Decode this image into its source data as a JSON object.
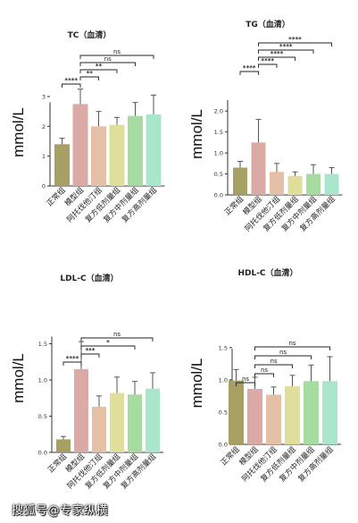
{
  "chart_data": [
    {
      "type": "bar",
      "title": "TC（血清）",
      "ylabel": "mmol/L",
      "categories": [
        "正常组",
        "模型组",
        "阿托伐他汀组",
        "复方低剂量组",
        "复方中剂量组",
        "复方高剂量组"
      ],
      "values": [
        1.4,
        2.75,
        2.0,
        2.05,
        2.35,
        2.4
      ],
      "errors": [
        0.2,
        0.5,
        0.5,
        0.25,
        0.45,
        0.65
      ],
      "ylim": [
        0,
        3.6
      ],
      "yticks": [
        "0",
        "1",
        "2",
        "3"
      ],
      "significance": [
        {
          "from": 0,
          "to": 1,
          "label": "****"
        },
        {
          "from": 1,
          "to": 2,
          "label": "**"
        },
        {
          "from": 1,
          "to": 3,
          "label": "**"
        },
        {
          "from": 1,
          "to": 4,
          "label": "ns"
        },
        {
          "from": 1,
          "to": 5,
          "label": "ns"
        }
      ]
    },
    {
      "type": "bar",
      "title": "TG（血清）",
      "ylabel": "mmol/L",
      "categories": [
        "正常组",
        "模型组",
        "阿托伐他汀组",
        "复方低剂量组",
        "复方中剂量组",
        "复方高剂量组"
      ],
      "values": [
        0.65,
        1.25,
        0.55,
        0.45,
        0.5,
        0.5
      ],
      "errors": [
        0.15,
        0.55,
        0.2,
        0.1,
        0.22,
        0.15
      ],
      "ylim": [
        0,
        2.9
      ],
      "yticks": [
        "0.0",
        "0.5",
        "1.0",
        "1.5",
        "2.0"
      ],
      "significance": [
        {
          "from": 0,
          "to": 1,
          "label": "****"
        },
        {
          "from": 1,
          "to": 2,
          "label": "****"
        },
        {
          "from": 1,
          "to": 3,
          "label": "****"
        },
        {
          "from": 1,
          "to": 4,
          "label": "****"
        },
        {
          "from": 1,
          "to": 5,
          "label": "****"
        }
      ]
    },
    {
      "type": "bar",
      "title": "LDL-C（血清）",
      "ylabel": "mmol/L",
      "categories": [
        "正常组",
        "模型组",
        "阿托伐他汀组",
        "复方低剂量组",
        "复方中剂量组",
        "复方高剂量组"
      ],
      "values": [
        0.18,
        1.15,
        0.63,
        0.82,
        0.8,
        0.88
      ],
      "errors": [
        0.04,
        0.38,
        0.15,
        0.22,
        0.18,
        0.22
      ],
      "ylim": [
        0,
        2.05
      ],
      "yticks": [
        "0.0",
        "0.5",
        "1.0",
        "1.5"
      ],
      "significance": [
        {
          "from": 0,
          "to": 1,
          "label": "****"
        },
        {
          "from": 1,
          "to": 2,
          "label": "***"
        },
        {
          "from": 1,
          "to": 4,
          "label": "*"
        },
        {
          "from": 1,
          "to": 5,
          "label": "ns"
        }
      ]
    },
    {
      "type": "bar",
      "title": "HDL-C（血清）",
      "ylabel": "mmol/L",
      "categories": [
        "正常组",
        "模型组",
        "阿托伐他汀组",
        "复方低剂量组",
        "复方中剂量组",
        "复方高剂量组"
      ],
      "values": [
        0.99,
        0.86,
        0.77,
        0.9,
        0.98,
        0.98
      ],
      "errors": [
        0.17,
        0.18,
        0.12,
        0.17,
        0.25,
        0.38
      ],
      "ylim": [
        0,
        1.9
      ],
      "yticks": [
        "0.0",
        "0.5",
        "1.0",
        "1.5"
      ],
      "significance": [
        {
          "from": 0,
          "to": 1,
          "label": "ns"
        },
        {
          "from": 1,
          "to": 2,
          "label": "ns"
        },
        {
          "from": 1,
          "to": 3,
          "label": "ns"
        },
        {
          "from": 1,
          "to": 4,
          "label": "ns"
        },
        {
          "from": 1,
          "to": 5,
          "label": "ns"
        }
      ]
    }
  ],
  "colors": {
    "bars": [
      "#a89f64",
      "#dba9a6",
      "#e6c0a6",
      "#dfde9a",
      "#a6dca0",
      "#a9e6cc"
    ],
    "axis": "#333333",
    "bracket": "#222222"
  },
  "watermark": "搜狐号@专家纵横"
}
